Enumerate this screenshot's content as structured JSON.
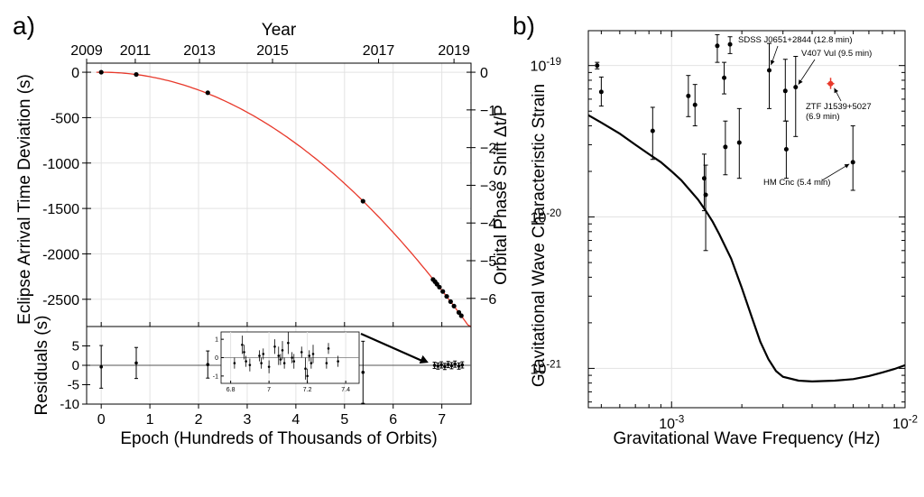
{
  "panel_a": {
    "letter": "a)"
  },
  "panel_b": {
    "letter": "b)"
  },
  "chart_data": [
    {
      "type": "scatter",
      "panel": "a",
      "subplot": "main",
      "xlabel": "Epoch (Hundreds of Thousands of Orbits)",
      "ylabel": "Eclipse Arrival Time Deviation (s)",
      "top_xlabel": "Year",
      "top_ticks": [
        "2009",
        "2011",
        "2013",
        "2015",
        "2017",
        "2019"
      ],
      "top_tick_epochs": [
        -0.3,
        0.7,
        2.02,
        3.52,
        5.7,
        7.25
      ],
      "right_ylabel": "Orbital Phase Shift Δt/P",
      "right_ticks": [
        "0",
        "−1",
        "−2",
        "−3",
        "−4",
        "−5",
        "−6"
      ],
      "right_tick_values": [
        0,
        -415,
        -830,
        -1245,
        -1660,
        -2075,
        -2490
      ],
      "xlim": [
        -0.3,
        7.6
      ],
      "ylim": [
        -2800,
        100
      ],
      "x_ticks": [
        0,
        1,
        2,
        3,
        4,
        5,
        6,
        7
      ],
      "y_ticks": [
        0,
        -500,
        -1000,
        -1500,
        -2000,
        -2500
      ],
      "y_tick_labels": [
        "0",
        "-500",
        "-1000",
        "-1500",
        "-2000",
        "-2500"
      ],
      "curve_color": "#e8392b",
      "curve_coeff": -49.0,
      "points": [
        {
          "x": 0.0,
          "y": 0
        },
        {
          "x": 0.72,
          "y": -25
        },
        {
          "x": 2.19,
          "y": -226
        },
        {
          "x": 5.38,
          "y": -1420
        },
        {
          "x": 6.82,
          "y": -2282
        },
        {
          "x": 6.86,
          "y": -2306
        },
        {
          "x": 6.9,
          "y": -2333
        },
        {
          "x": 6.95,
          "y": -2366
        },
        {
          "x": 7.02,
          "y": -2414
        },
        {
          "x": 7.1,
          "y": -2468
        },
        {
          "x": 7.18,
          "y": -2526
        },
        {
          "x": 7.25,
          "y": -2575
        },
        {
          "x": 7.35,
          "y": -2645
        },
        {
          "x": 7.4,
          "y": -2681
        }
      ]
    },
    {
      "type": "scatter",
      "panel": "a",
      "subplot": "residuals",
      "ylabel": "Residuals (s)",
      "xlim": [
        -0.3,
        7.6
      ],
      "ylim": [
        -10,
        10
      ],
      "y_ticks": [
        5,
        0,
        -5,
        -10
      ],
      "y_tick_labels": [
        "5",
        "0",
        "-5",
        "-10"
      ],
      "points": [
        {
          "x": 0.0,
          "y": -0.4,
          "err": 5.5
        },
        {
          "x": 0.72,
          "y": 0.6,
          "err": 4.0
        },
        {
          "x": 2.19,
          "y": 0.2,
          "err": 3.5
        },
        {
          "x": 5.38,
          "y": -1.8,
          "err": 8.0
        },
        {
          "x": 6.85,
          "y": 0.0,
          "err": 0.8
        },
        {
          "x": 6.92,
          "y": -0.2,
          "err": 0.8
        },
        {
          "x": 6.99,
          "y": 0.1,
          "err": 0.8
        },
        {
          "x": 7.06,
          "y": -0.3,
          "err": 0.8
        },
        {
          "x": 7.13,
          "y": 0.2,
          "err": 0.8
        },
        {
          "x": 7.2,
          "y": -0.1,
          "err": 0.8
        },
        {
          "x": 7.27,
          "y": 0.3,
          "err": 0.8
        },
        {
          "x": 7.35,
          "y": -0.2,
          "err": 0.8
        },
        {
          "x": 7.42,
          "y": 0.1,
          "err": 0.8
        }
      ],
      "inset": {
        "xlim": [
          6.75,
          7.47
        ],
        "ylim": [
          -1.4,
          1.4
        ],
        "x_ticks": [
          6.8,
          7,
          7.2,
          7.4
        ],
        "x_tick_labels": [
          "6.8",
          "7",
          "7.2",
          "7.4"
        ],
        "y_ticks": [
          1,
          0,
          -1
        ],
        "y_tick_labels": [
          "1",
          "0",
          "-1"
        ],
        "points": [
          {
            "x": 6.82,
            "y": -0.3,
            "err": 0.3
          },
          {
            "x": 6.86,
            "y": 0.7,
            "err": 0.5
          },
          {
            "x": 6.87,
            "y": 0.3,
            "err": 0.4
          },
          {
            "x": 6.88,
            "y": -0.2,
            "err": 0.3
          },
          {
            "x": 6.9,
            "y": -0.4,
            "err": 0.35
          },
          {
            "x": 6.95,
            "y": 0.1,
            "err": 0.3
          },
          {
            "x": 6.96,
            "y": -0.3,
            "err": 0.3
          },
          {
            "x": 6.97,
            "y": 0.2,
            "err": 0.3
          },
          {
            "x": 7.0,
            "y": -0.5,
            "err": 0.35
          },
          {
            "x": 7.03,
            "y": 0.6,
            "err": 0.4
          },
          {
            "x": 7.05,
            "y": 0.1,
            "err": 0.5
          },
          {
            "x": 7.06,
            "y": -0.1,
            "err": 0.3
          },
          {
            "x": 7.07,
            "y": 0.4,
            "err": 0.5
          },
          {
            "x": 7.08,
            "y": -0.3,
            "err": 0.3
          },
          {
            "x": 7.1,
            "y": 0.8,
            "err": 0.6
          },
          {
            "x": 7.12,
            "y": 0.0,
            "err": 0.3
          },
          {
            "x": 7.13,
            "y": -0.2,
            "err": 0.4
          },
          {
            "x": 7.17,
            "y": 0.3,
            "err": 0.3
          },
          {
            "x": 7.19,
            "y": -0.6,
            "err": 0.6
          },
          {
            "x": 7.2,
            "y": -1.0,
            "err": 0.4
          },
          {
            "x": 7.21,
            "y": 0.1,
            "err": 0.3
          },
          {
            "x": 7.22,
            "y": -0.3,
            "err": 0.3
          },
          {
            "x": 7.23,
            "y": 0.2,
            "err": 0.5
          },
          {
            "x": 7.3,
            "y": -0.3,
            "err": 0.3
          },
          {
            "x": 7.31,
            "y": 0.5,
            "err": 0.3
          },
          {
            "x": 7.36,
            "y": -0.2,
            "err": 0.3
          }
        ]
      }
    },
    {
      "type": "scatter",
      "panel": "b",
      "xlabel": "Gravitational Wave Frequency (Hz)",
      "ylabel": "Gravitational Wave Characteristic Strain",
      "xscale": "log",
      "yscale": "log",
      "xlim": [
        0.00044,
        0.01
      ],
      "ylim": [
        5.5e-22,
        1.7e-19
      ],
      "x_ticks": [
        0.001,
        0.01
      ],
      "x_tick_labels": [
        "10^-3",
        "10^-2"
      ],
      "y_ticks": [
        1e-21,
        1e-20,
        1e-19
      ],
      "y_tick_labels": [
        "10^-21",
        "10^-20",
        "10^-19"
      ],
      "sensitivity_curve": [
        {
          "f": 0.00044,
          "h": 4.7e-20
        },
        {
          "f": 0.0005,
          "h": 4.2e-20
        },
        {
          "f": 0.0006,
          "h": 3.55e-20
        },
        {
          "f": 0.0007,
          "h": 3e-20
        },
        {
          "f": 0.0008,
          "h": 2.6e-20
        },
        {
          "f": 0.0009,
          "h": 2.3e-20
        },
        {
          "f": 0.001,
          "h": 2e-20
        },
        {
          "f": 0.0011,
          "h": 1.75e-20
        },
        {
          "f": 0.0012,
          "h": 1.5e-20
        },
        {
          "f": 0.0013,
          "h": 1.3e-20
        },
        {
          "f": 0.0014,
          "h": 1.1e-20
        },
        {
          "f": 0.0015,
          "h": 9.3e-21
        },
        {
          "f": 0.0016,
          "h": 7.7e-21
        },
        {
          "f": 0.0018,
          "h": 5.3e-21
        },
        {
          "f": 0.002,
          "h": 3.4e-21
        },
        {
          "f": 0.0022,
          "h": 2.2e-21
        },
        {
          "f": 0.0024,
          "h": 1.5e-21
        },
        {
          "f": 0.0026,
          "h": 1.15e-21
        },
        {
          "f": 0.0028,
          "h": 9.6e-22
        },
        {
          "f": 0.003,
          "h": 8.8e-22
        },
        {
          "f": 0.0035,
          "h": 8.3e-22
        },
        {
          "f": 0.004,
          "h": 8.2e-22
        },
        {
          "f": 0.005,
          "h": 8.3e-22
        },
        {
          "f": 0.006,
          "h": 8.5e-22
        },
        {
          "f": 0.007,
          "h": 8.9e-22
        },
        {
          "f": 0.008,
          "h": 9.4e-22
        },
        {
          "f": 0.009,
          "h": 9.9e-22
        },
        {
          "f": 0.01,
          "h": 1.05e-21
        }
      ],
      "points": [
        {
          "f": 0.00048,
          "h": 1e-19,
          "lo": 9.5e-20,
          "hi": 1.05e-19
        },
        {
          "f": 0.0005,
          "h": 6.7e-20,
          "lo": 5.4e-20,
          "hi": 8.4e-20
        },
        {
          "f": 0.00083,
          "h": 3.7e-20,
          "lo": 2.4e-20,
          "hi": 5.3e-20
        },
        {
          "f": 0.00118,
          "h": 6.3e-20,
          "lo": 4.6e-20,
          "hi": 8.6e-20
        },
        {
          "f": 0.00126,
          "h": 5.5e-20,
          "lo": 4e-20,
          "hi": 7.5e-20
        },
        {
          "f": 0.00138,
          "h": 1.8e-20,
          "lo": 1.1e-20,
          "hi": 2.6e-20
        },
        {
          "f": 0.0014,
          "h": 1.4e-20,
          "lo": 6e-21,
          "hi": 2.2e-20
        },
        {
          "f": 0.00157,
          "h": 1.35e-19,
          "lo": 1.05e-19,
          "hi": 1.6e-19
        },
        {
          "f": 0.00168,
          "h": 8.3e-20,
          "lo": 6.5e-20,
          "hi": 1.05e-19
        },
        {
          "f": 0.0017,
          "h": 2.9e-20,
          "lo": 1.9e-20,
          "hi": 4.3e-20
        },
        {
          "f": 0.00178,
          "h": 1.38e-19,
          "lo": 1.2e-19,
          "hi": 1.55e-19
        },
        {
          "f": 0.00195,
          "h": 3.1e-20,
          "lo": 1.8e-20,
          "hi": 5.2e-20
        },
        {
          "f": 0.00262,
          "h": 9.3e-20,
          "lo": 5.2e-20,
          "hi": 1.4e-19
        },
        {
          "f": 0.00307,
          "h": 6.8e-20,
          "lo": 4.3e-20,
          "hi": 1.1e-19
        },
        {
          "f": 0.0031,
          "h": 2.8e-20,
          "lo": 1.8e-20,
          "hi": 4.3e-20
        },
        {
          "f": 0.0034,
          "h": 7.2e-20,
          "lo": 3.4e-20,
          "hi": 1.15e-19
        },
        {
          "f": 0.00598,
          "h": 2.3e-20,
          "lo": 1.5e-20,
          "hi": 4e-20
        }
      ],
      "highlight_point": {
        "f": 0.0048,
        "h": 7.6e-20,
        "lo": 7e-20,
        "hi": 8.3e-20,
        "color": "#e8392b"
      },
      "annotations": [
        {
          "text": "SDSS J0651+2844 (12.8 min)",
          "target_f": 0.00262,
          "target_h": 9.3e-20
        },
        {
          "text": "V407 Vul (9.5 min)",
          "target_f": 0.0034,
          "target_h": 7.2e-20
        },
        {
          "text": "ZTF J1539+5027",
          "text2": "(6.9 min)",
          "target_f": 0.0048,
          "target_h": 7.6e-20
        },
        {
          "text": "HM Cnc (5.4 min)",
          "target_f": 0.00598,
          "target_h": 2.3e-20
        }
      ]
    }
  ]
}
